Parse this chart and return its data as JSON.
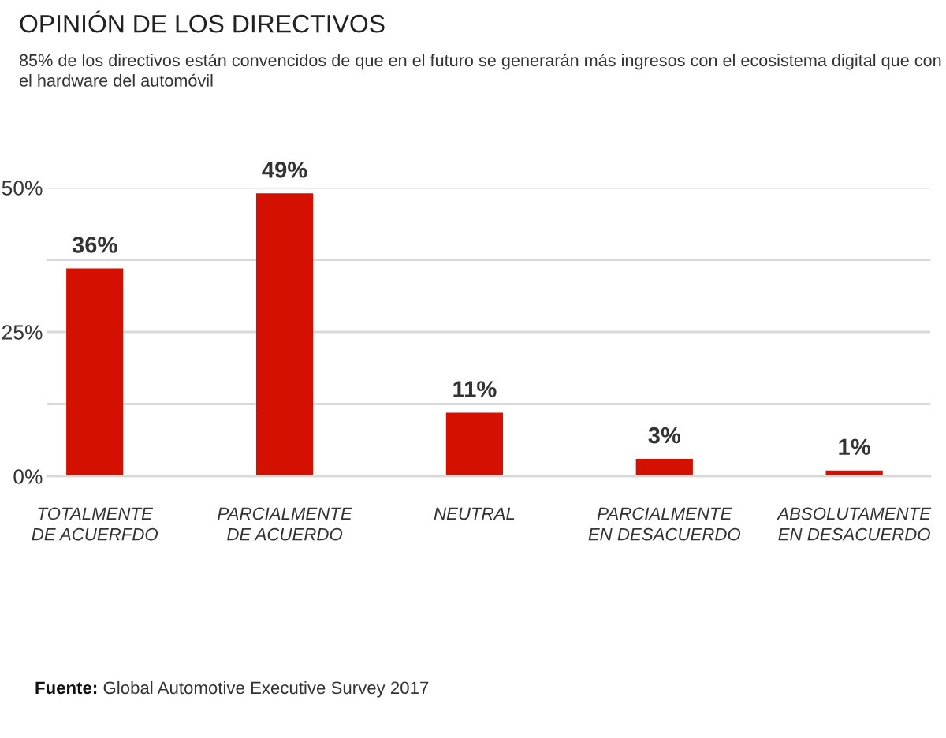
{
  "chart_data": {
    "type": "bar",
    "title": "OPINIÓN DE LOS DIRECTIVOS",
    "subtitle": "85% de los directivos están convencidos de que en el futuro se generarán más ingresos con el ecosistema digital que con el hardware del automóvil",
    "categories": [
      "TOTALMENTE\nDE ACUERFDO",
      "PARCIALMENTE\nDE ACUERDO",
      "NEUTRAL",
      "PARCIALMENTE\nEN DESACUERDO",
      "ABSOLUTAMENTE\nEN DESACUERDO"
    ],
    "values": [
      36,
      49,
      11,
      3,
      1
    ],
    "value_labels": [
      "36%",
      "49%",
      "11%",
      "3%",
      "1%"
    ],
    "color": "#d41100",
    "ylim": [
      0,
      50
    ],
    "yticks": [
      {
        "value": 0,
        "label": "0%"
      },
      {
        "value": 12.5,
        "label": null
      },
      {
        "value": 25,
        "label": "25%"
      },
      {
        "value": 37.5,
        "label": null
      },
      {
        "value": 50,
        "label": "50%"
      }
    ],
    "grid": "y",
    "annotations": [
      "Fuente: Global Automotive Executive Survey 2017"
    ]
  }
}
